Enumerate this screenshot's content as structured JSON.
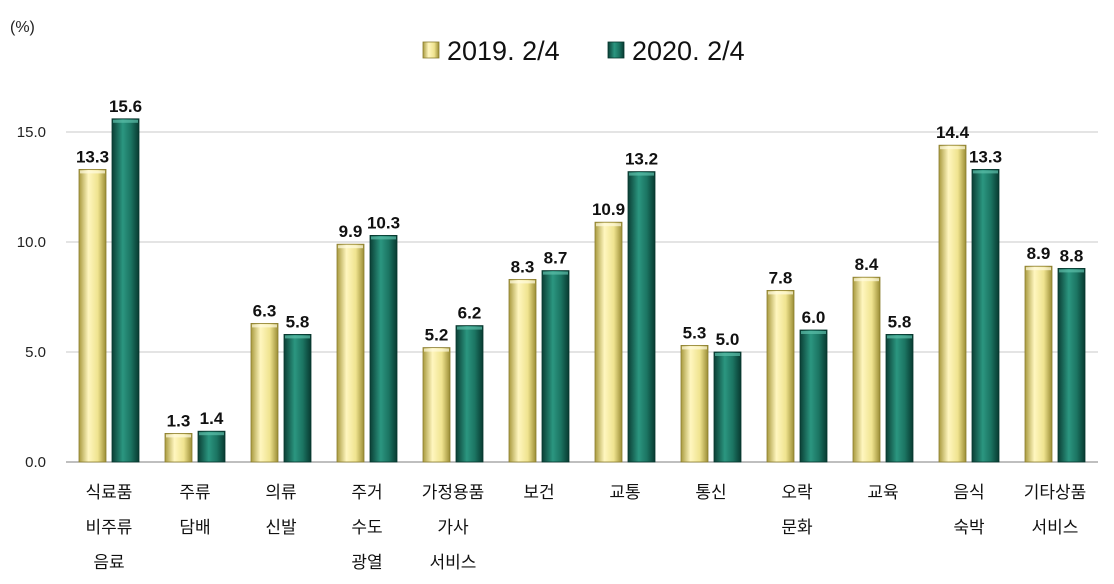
{
  "chart_data": {
    "type": "bar",
    "unit_label": "(%)",
    "categories": [
      [
        "식료품",
        "비주류",
        "음료"
      ],
      [
        "주류",
        "담배"
      ],
      [
        "의류",
        "신발"
      ],
      [
        "주거",
        "수도",
        "광열"
      ],
      [
        "가정용품",
        "가사",
        "서비스"
      ],
      [
        "보건"
      ],
      [
        "교통"
      ],
      [
        "통신"
      ],
      [
        "오락",
        "문화"
      ],
      [
        "교육"
      ],
      [
        "음식",
        "숙박"
      ],
      [
        "기타상품",
        "서비스"
      ]
    ],
    "series": [
      {
        "name": "2019. 2/4",
        "color": "#ece08a",
        "values": [
          13.3,
          1.3,
          6.3,
          9.9,
          5.2,
          8.3,
          10.9,
          5.3,
          7.8,
          8.4,
          14.4,
          8.9
        ]
      },
      {
        "name": "2020. 2/4",
        "color": "#1f7a68",
        "values": [
          15.6,
          1.4,
          5.8,
          10.3,
          6.2,
          8.7,
          13.2,
          5.0,
          6.0,
          5.8,
          13.3,
          8.8
        ]
      }
    ],
    "value_labels": [
      [
        "13.3",
        "1.3",
        "6.3",
        "9.9",
        "5.2",
        "8.3",
        "10.9",
        "5.3",
        "7.8",
        "8.4",
        "14.4",
        "8.9"
      ],
      [
        "15.6",
        "1.4",
        "5.8",
        "10.3",
        "6.2",
        "8.7",
        "13.2",
        "5.0",
        "6.0",
        "5.8",
        "13.3",
        "8.8"
      ]
    ],
    "yticks": [
      "0.0",
      "5.0",
      "10.0",
      "15.0"
    ],
    "ylim": [
      0,
      15.6
    ],
    "grid": true,
    "legend_position": "top-center"
  }
}
